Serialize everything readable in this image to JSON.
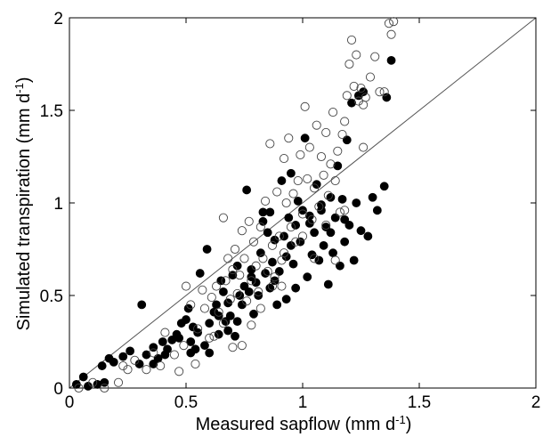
{
  "chart_data": {
    "type": "scatter",
    "xlabel": "Measured sapflow (mm d",
    "xlabel_sup": "-1",
    "xlabel_end": ")",
    "ylabel": "Simulated transpiration (mm d",
    "ylabel_sup": "-1",
    "ylabel_end": ")",
    "xlim": [
      0,
      2
    ],
    "ylim": [
      0,
      2
    ],
    "xticks": [
      0,
      0.5,
      1,
      1.5,
      2
    ],
    "yticks": [
      0,
      0.5,
      1,
      1.5,
      2
    ],
    "xtick_labels": [
      "0",
      "0.5",
      "1",
      "1.5",
      "2"
    ],
    "ytick_labels": [
      "0",
      "0.5",
      "1",
      "1.5",
      "2"
    ],
    "reference_line": {
      "style": "1:1",
      "color": "#555555",
      "points": [
        [
          0,
          0
        ],
        [
          2,
          2
        ]
      ]
    },
    "grid": false,
    "series": [
      {
        "marker": "filled-circle",
        "color": "#000000",
        "points": [
          [
            0.03,
            0.02
          ],
          [
            0.06,
            0.06
          ],
          [
            0.08,
            0.01
          ],
          [
            0.12,
            0.02
          ],
          [
            0.14,
            0.12
          ],
          [
            0.15,
            0.03
          ],
          [
            0.17,
            0.16
          ],
          [
            0.19,
            0.14
          ],
          [
            0.23,
            0.17
          ],
          [
            0.26,
            0.2
          ],
          [
            0.3,
            0.13
          ],
          [
            0.31,
            0.45
          ],
          [
            0.33,
            0.18
          ],
          [
            0.36,
            0.22
          ],
          [
            0.38,
            0.16
          ],
          [
            0.4,
            0.25
          ],
          [
            0.41,
            0.18
          ],
          [
            0.44,
            0.26
          ],
          [
            0.46,
            0.29
          ],
          [
            0.47,
            0.27
          ],
          [
            0.48,
            0.35
          ],
          [
            0.5,
            0.37
          ],
          [
            0.51,
            0.43
          ],
          [
            0.52,
            0.25
          ],
          [
            0.53,
            0.33
          ],
          [
            0.54,
            0.21
          ],
          [
            0.55,
            0.3
          ],
          [
            0.56,
            0.62
          ],
          [
            0.58,
            0.23
          ],
          [
            0.59,
            0.75
          ],
          [
            0.6,
            0.35
          ],
          [
            0.62,
            0.41
          ],
          [
            0.63,
            0.45
          ],
          [
            0.64,
            0.29
          ],
          [
            0.65,
            0.58
          ],
          [
            0.66,
            0.52
          ],
          [
            0.67,
            0.36
          ],
          [
            0.68,
            0.46
          ],
          [
            0.69,
            0.39
          ],
          [
            0.7,
            0.61
          ],
          [
            0.71,
            0.28
          ],
          [
            0.72,
            0.66
          ],
          [
            0.73,
            0.5
          ],
          [
            0.74,
            0.45
          ],
          [
            0.75,
            0.55
          ],
          [
            0.76,
            1.07
          ],
          [
            0.77,
            0.52
          ],
          [
            0.78,
            0.64
          ],
          [
            0.79,
            0.4
          ],
          [
            0.8,
            0.57
          ],
          [
            0.81,
            0.5
          ],
          [
            0.82,
            0.73
          ],
          [
            0.83,
            0.9
          ],
          [
            0.84,
            0.62
          ],
          [
            0.85,
            0.84
          ],
          [
            0.86,
            0.54
          ],
          [
            0.87,
            0.68
          ],
          [
            0.88,
            0.8
          ],
          [
            0.89,
            0.45
          ],
          [
            0.9,
            0.63
          ],
          [
            0.91,
            1.12
          ],
          [
            0.92,
            0.82
          ],
          [
            0.93,
            0.71
          ],
          [
            0.94,
            0.92
          ],
          [
            0.95,
            1.16
          ],
          [
            0.96,
            0.67
          ],
          [
            0.97,
            0.88
          ],
          [
            0.98,
            1.01
          ],
          [
            0.99,
            0.79
          ],
          [
            1.0,
            0.96
          ],
          [
            1.01,
            1.35
          ],
          [
            1.02,
            0.6
          ],
          [
            1.03,
            0.89
          ],
          [
            1.04,
            0.72
          ],
          [
            1.05,
            0.84
          ],
          [
            1.06,
            1.1
          ],
          [
            1.07,
            0.69
          ],
          [
            1.08,
            0.99
          ],
          [
            1.09,
            0.77
          ],
          [
            1.1,
            0.87
          ],
          [
            1.11,
            0.56
          ],
          [
            1.12,
            1.03
          ],
          [
            1.13,
            0.73
          ],
          [
            1.14,
            0.92
          ],
          [
            1.15,
            1.2
          ],
          [
            1.16,
            0.66
          ],
          [
            1.17,
            1.02
          ],
          [
            1.18,
            0.79
          ],
          [
            1.19,
            1.34
          ],
          [
            1.2,
            0.88
          ],
          [
            1.21,
            1.54
          ],
          [
            1.22,
            0.69
          ],
          [
            1.23,
            1.0
          ],
          [
            1.24,
            1.58
          ],
          [
            1.25,
            0.85
          ],
          [
            1.26,
            1.6
          ],
          [
            1.28,
            0.82
          ],
          [
            1.3,
            1.03
          ],
          [
            1.32,
            0.96
          ],
          [
            1.35,
            1.09
          ],
          [
            1.36,
            1.57
          ],
          [
            1.38,
            1.77
          ],
          [
            0.78,
            0.6
          ],
          [
            0.83,
            0.95
          ],
          [
            0.88,
            0.58
          ],
          [
            0.93,
            0.48
          ],
          [
            0.97,
            0.54
          ],
          [
            1.03,
            0.93
          ],
          [
            1.08,
            0.96
          ],
          [
            1.12,
            0.84
          ],
          [
            1.18,
            0.91
          ],
          [
            0.72,
            0.36
          ],
          [
            0.68,
            0.31
          ],
          [
            0.52,
            0.19
          ],
          [
            0.42,
            0.21
          ],
          [
            0.36,
            0.13
          ],
          [
            0.6,
            0.19
          ],
          [
            0.64,
            0.39
          ],
          [
            0.86,
            0.95
          ],
          [
            0.95,
            0.77
          ]
        ]
      },
      {
        "marker": "open-circle",
        "color": "#000000",
        "points": [
          [
            0.04,
            0.0
          ],
          [
            0.1,
            0.03
          ],
          [
            0.15,
            0.0
          ],
          [
            0.21,
            0.03
          ],
          [
            0.23,
            0.12
          ],
          [
            0.25,
            0.1
          ],
          [
            0.28,
            0.15
          ],
          [
            0.33,
            0.1
          ],
          [
            0.36,
            0.19
          ],
          [
            0.39,
            0.12
          ],
          [
            0.41,
            0.3
          ],
          [
            0.45,
            0.18
          ],
          [
            0.49,
            0.23
          ],
          [
            0.5,
            0.55
          ],
          [
            0.52,
            0.45
          ],
          [
            0.55,
            0.32
          ],
          [
            0.57,
            0.53
          ],
          [
            0.58,
            0.43
          ],
          [
            0.6,
            0.27
          ],
          [
            0.61,
            0.49
          ],
          [
            0.63,
            0.55
          ],
          [
            0.64,
            0.41
          ],
          [
            0.66,
            0.92
          ],
          [
            0.67,
            0.58
          ],
          [
            0.68,
            0.7
          ],
          [
            0.69,
            0.48
          ],
          [
            0.7,
            0.64
          ],
          [
            0.71,
            0.75
          ],
          [
            0.72,
            0.51
          ],
          [
            0.73,
            0.61
          ],
          [
            0.74,
            0.85
          ],
          [
            0.75,
            0.7
          ],
          [
            0.76,
            0.47
          ],
          [
            0.77,
            0.9
          ],
          [
            0.78,
            0.58
          ],
          [
            0.79,
            0.79
          ],
          [
            0.8,
            0.66
          ],
          [
            0.81,
            0.52
          ],
          [
            0.82,
            0.87
          ],
          [
            0.83,
            0.7
          ],
          [
            0.84,
            1.01
          ],
          [
            0.85,
            0.63
          ],
          [
            0.86,
            1.32
          ],
          [
            0.87,
            0.77
          ],
          [
            0.88,
            0.6
          ],
          [
            0.89,
            1.06
          ],
          [
            0.9,
            0.82
          ],
          [
            0.91,
            0.69
          ],
          [
            0.92,
            1.24
          ],
          [
            0.93,
            1.0
          ],
          [
            0.94,
            1.35
          ],
          [
            0.95,
            0.87
          ],
          [
            0.96,
            1.05
          ],
          [
            0.97,
            0.79
          ],
          [
            0.98,
            1.12
          ],
          [
            0.99,
            1.26
          ],
          [
            1.0,
            0.94
          ],
          [
            1.01,
            1.52
          ],
          [
            1.02,
            1.13
          ],
          [
            1.03,
            1.3
          ],
          [
            1.04,
            0.91
          ],
          [
            1.05,
            1.08
          ],
          [
            1.06,
            1.42
          ],
          [
            1.07,
            0.98
          ],
          [
            1.08,
            1.25
          ],
          [
            1.09,
            1.15
          ],
          [
            1.1,
            1.38
          ],
          [
            1.11,
            1.04
          ],
          [
            1.12,
            1.21
          ],
          [
            1.13,
            1.49
          ],
          [
            1.14,
            1.12
          ],
          [
            1.15,
            1.28
          ],
          [
            1.16,
            0.95
          ],
          [
            1.17,
            1.37
          ],
          [
            1.18,
            1.44
          ],
          [
            1.19,
            1.58
          ],
          [
            1.2,
            1.75
          ],
          [
            1.21,
            1.88
          ],
          [
            1.22,
            1.63
          ],
          [
            1.23,
            1.8
          ],
          [
            1.24,
            1.55
          ],
          [
            1.25,
            1.62
          ],
          [
            1.26,
            1.53
          ],
          [
            1.27,
            1.57
          ],
          [
            1.29,
            1.68
          ],
          [
            1.31,
            1.79
          ],
          [
            1.33,
            1.6
          ],
          [
            1.35,
            1.6
          ],
          [
            1.37,
            1.97
          ],
          [
            1.38,
            1.91
          ],
          [
            1.39,
            1.98
          ],
          [
            0.62,
            0.28
          ],
          [
            0.66,
            0.35
          ],
          [
            0.74,
            0.23
          ],
          [
            0.78,
            0.34
          ],
          [
            0.82,
            0.43
          ],
          [
            0.87,
            0.55
          ],
          [
            0.91,
            0.55
          ],
          [
            1.05,
            0.7
          ],
          [
            1.14,
            0.69
          ],
          [
            1.18,
            0.96
          ],
          [
            1.26,
            1.3
          ],
          [
            0.47,
            0.09
          ],
          [
            0.54,
            0.13
          ],
          [
            0.7,
            0.22
          ],
          [
            0.92,
            0.73
          ],
          [
            1.0,
            0.82
          ],
          [
            1.1,
            0.88
          ]
        ]
      }
    ]
  }
}
